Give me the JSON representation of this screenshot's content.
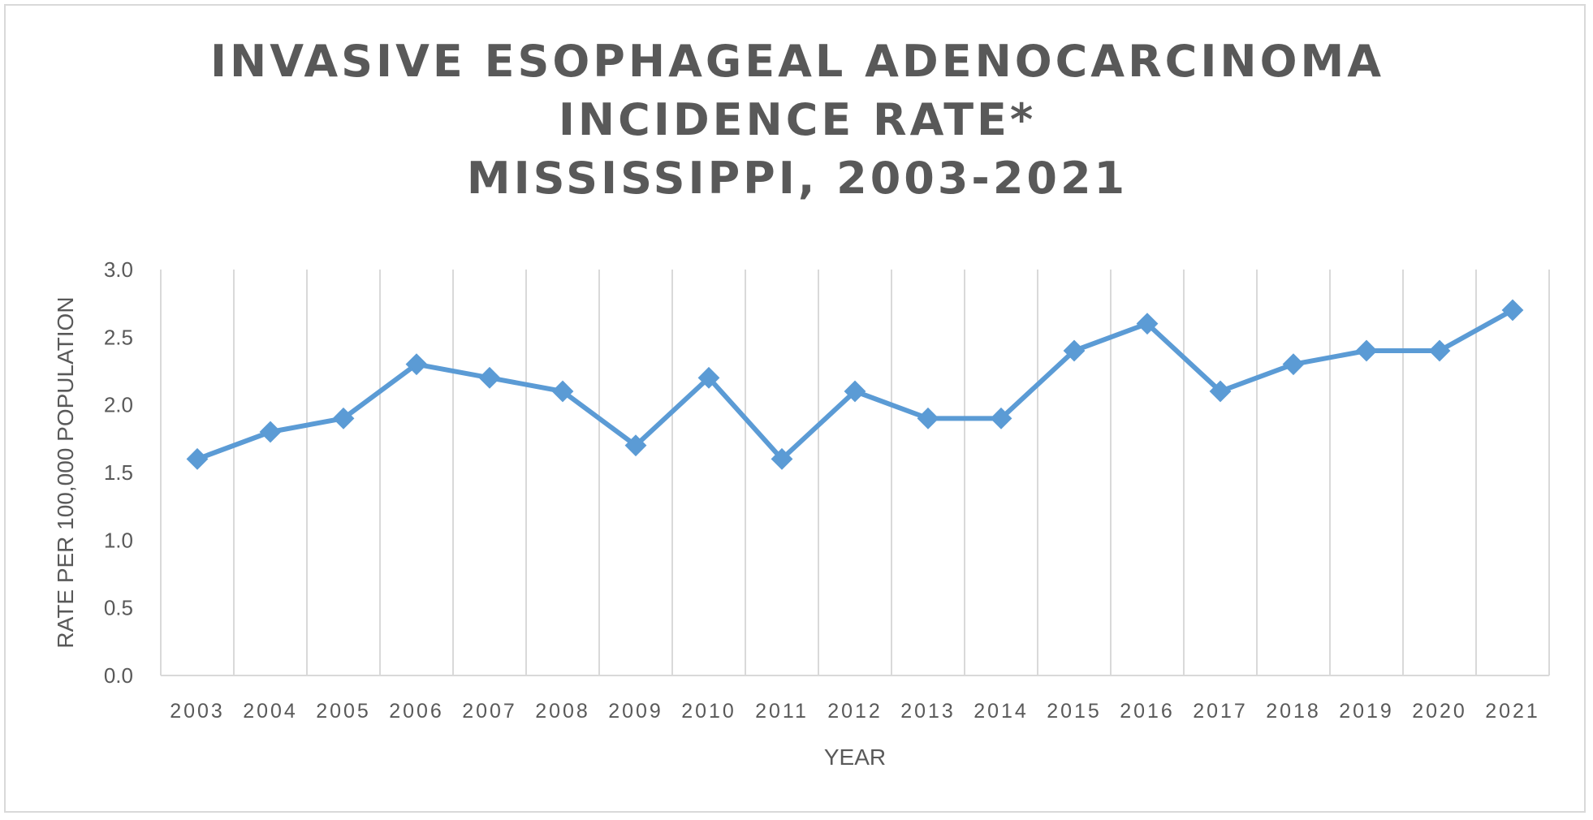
{
  "chart_data": {
    "type": "line",
    "title_lines": [
      "INVASIVE ESOPHAGEAL ADENOCARCINOMA",
      "INCIDENCE RATE*",
      "MISSISSIPPI, 2003-2021"
    ],
    "xlabel": "YEAR",
    "ylabel": "RATE PER 100,000 POPULATION",
    "categories": [
      "2003",
      "2004",
      "2005",
      "2006",
      "2007",
      "2008",
      "2009",
      "2010",
      "2011",
      "2012",
      "2013",
      "2014",
      "2015",
      "2016",
      "2017",
      "2018",
      "2019",
      "2020",
      "2021"
    ],
    "values": [
      1.6,
      1.8,
      1.9,
      2.3,
      2.2,
      2.1,
      1.7,
      2.2,
      1.6,
      2.1,
      1.9,
      1.9,
      2.4,
      2.6,
      2.1,
      2.3,
      2.4,
      2.4,
      2.7
    ],
    "ylim": [
      0,
      3.0
    ],
    "yticks": [
      "0.0",
      "0.5",
      "1.0",
      "1.5",
      "2.0",
      "2.5",
      "3.0"
    ],
    "grid": "vertical",
    "legend": "none",
    "line_color": "#5b9bd5",
    "grid_color": "#d9d9d9"
  }
}
